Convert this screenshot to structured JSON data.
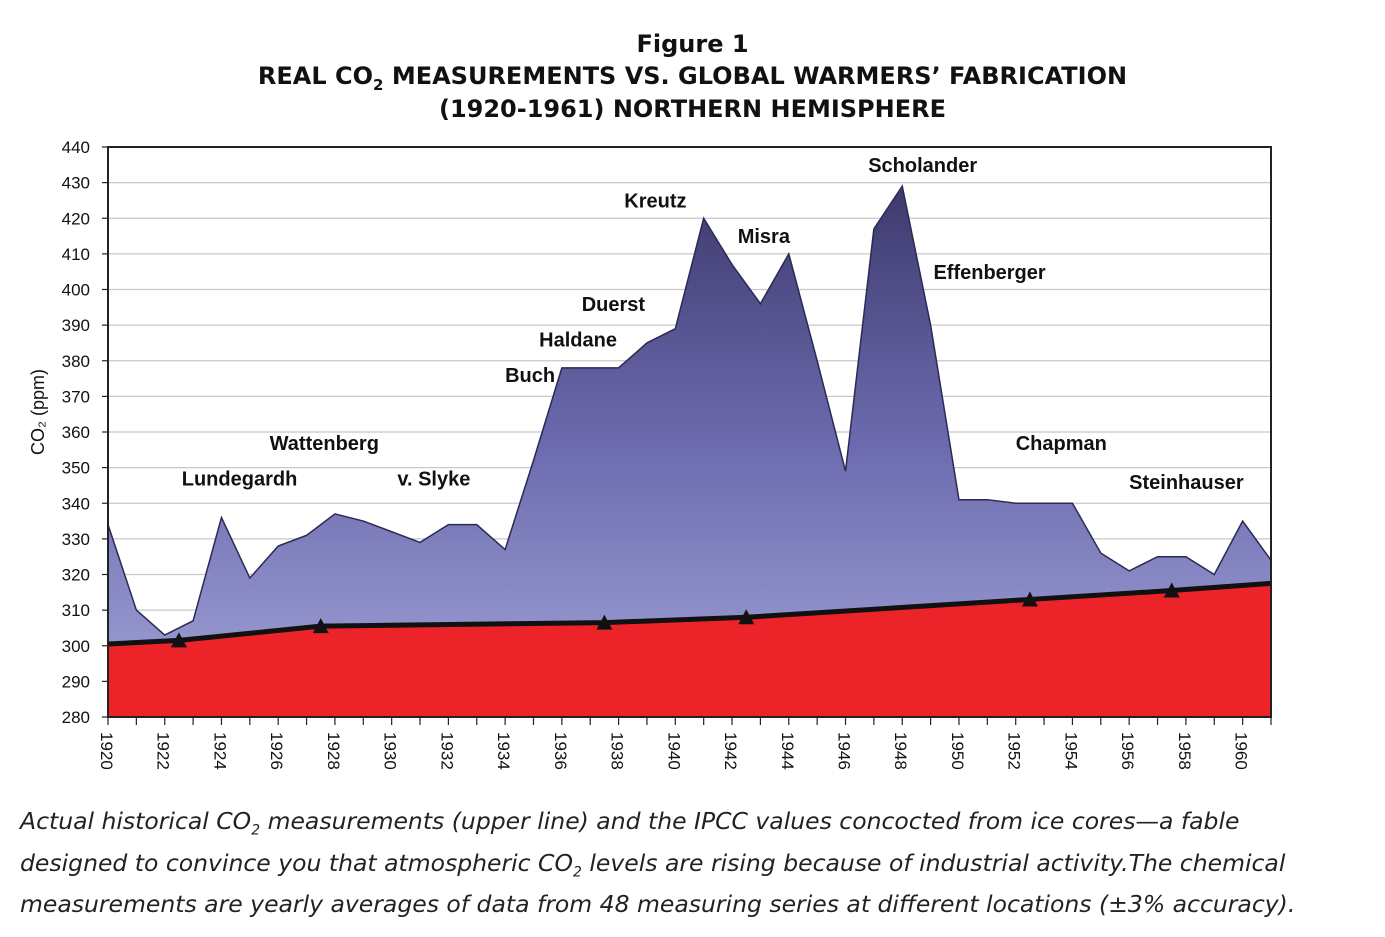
{
  "figure": {
    "number": "Figure 1",
    "title_pre": "REAL CO",
    "title_sub": "2",
    "title_post": " MEASUREMENTS VS. GLOBAL WARMERS’ FABRICATION",
    "subtitle": "(1920-1961) NORTHERN HEMISPHERE"
  },
  "caption": {
    "p1": "Actual historical CO",
    "sub1": "2",
    "p2": " measurements (upper line) and the IPCC values concocted from ice cores—a fable designed to convince you that atmospheric CO",
    "sub2": "2",
    "p3": " levels are rising because of industrial activity.The chemical measurements are yearly averages of data from 48 measuring series at different locations (±3% accuracy)."
  },
  "colors": {
    "real_top": "#3e3a6e",
    "real_mid": "#6d6cb0",
    "real_bottom": "#a3a5d8",
    "ice_core": "#ec2329",
    "ice_line": "#111111",
    "grid": "#c8c8c8"
  },
  "chart_data": {
    "type": "area",
    "title": "REAL CO2 MEASUREMENTS VS. GLOBAL WARMERS’ FABRICATION (1920-1961) NORTHERN HEMISPHERE",
    "xlabel": "",
    "ylabel": "CO₂ (ppm)",
    "xlim": [
      1920,
      1961
    ],
    "ylim": [
      280,
      440
    ],
    "yticks": [
      280,
      290,
      300,
      310,
      320,
      330,
      340,
      350,
      360,
      370,
      380,
      390,
      400,
      410,
      420,
      430,
      440
    ],
    "xticks": [
      1920,
      1922,
      1924,
      1926,
      1928,
      1930,
      1932,
      1934,
      1936,
      1938,
      1940,
      1942,
      1944,
      1946,
      1948,
      1950,
      1952,
      1954,
      1956,
      1958,
      1960
    ],
    "grid": true,
    "series": [
      {
        "name": "Chemical measurements (upper line)",
        "x": [
          1920,
          1921,
          1922,
          1923,
          1924,
          1925,
          1926,
          1927,
          1928,
          1929,
          1930,
          1931,
          1932,
          1933,
          1934,
          1935,
          1936,
          1937,
          1938,
          1939,
          1940,
          1941,
          1942,
          1943,
          1944,
          1945,
          1946,
          1947,
          1948,
          1949,
          1950,
          1951,
          1952,
          1953,
          1954,
          1955,
          1956,
          1957,
          1958,
          1959,
          1960,
          1961
        ],
        "values": [
          334,
          310,
          303,
          307,
          336,
          319,
          328,
          331,
          337,
          335,
          332,
          329,
          334,
          334,
          327,
          352,
          378,
          378,
          378,
          385,
          389,
          420,
          407,
          396,
          410,
          380,
          349,
          417,
          429,
          390,
          341,
          341,
          340,
          340,
          340,
          326,
          321,
          325,
          325,
          320,
          335,
          324
        ]
      },
      {
        "name": "IPCC ice-core values",
        "x": [
          1920,
          1922.5,
          1927.5,
          1937.5,
          1942.5,
          1952.5,
          1957.5,
          1961
        ],
        "values": [
          300.5,
          301.5,
          305.5,
          306.5,
          308,
          313,
          315.5,
          317.5
        ],
        "markers_x": [
          1922.5,
          1927.5,
          1937.5,
          1942.5,
          1952.5,
          1957.5
        ]
      }
    ],
    "annotations": [
      {
        "text": "Lundegardh",
        "x": 1922.6,
        "y": 345
      },
      {
        "text": "Wattenberg",
        "x": 1925.7,
        "y": 355
      },
      {
        "text": "v. Slyke",
        "x": 1930.2,
        "y": 345
      },
      {
        "text": "Buch",
        "x": 1934.0,
        "y": 374
      },
      {
        "text": "Haldane",
        "x": 1935.2,
        "y": 384
      },
      {
        "text": "Duerst",
        "x": 1936.7,
        "y": 394
      },
      {
        "text": "Kreutz",
        "x": 1938.2,
        "y": 423
      },
      {
        "text": "Misra",
        "x": 1942.2,
        "y": 413
      },
      {
        "text": "Scholander",
        "x": 1946.8,
        "y": 433
      },
      {
        "text": "Effenberger",
        "x": 1949.1,
        "y": 403
      },
      {
        "text": "Chapman",
        "x": 1952.0,
        "y": 355
      },
      {
        "text": "Steinhauser",
        "x": 1956.0,
        "y": 344
      }
    ]
  }
}
